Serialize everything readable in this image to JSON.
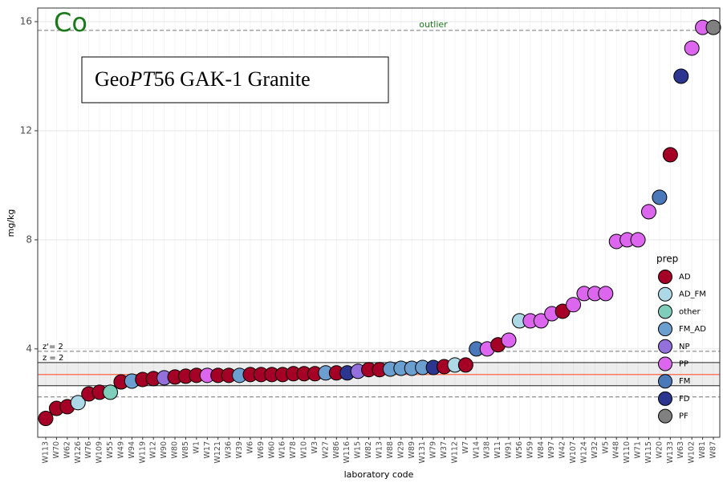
{
  "chart_data": {
    "type": "scatter",
    "element_label": "Co",
    "title_parts": [
      "Geo",
      "PT",
      "56 GAK-1 Granite"
    ],
    "x_label": "laboratory code",
    "y_label": "mg/kg",
    "categories": [
      "W113",
      "W70",
      "W62",
      "W126",
      "W76",
      "W109",
      "W55",
      "W49",
      "W94",
      "W119",
      "W12",
      "W90",
      "W80",
      "W85",
      "W1",
      "W17",
      "W121",
      "W36",
      "W39",
      "W6",
      "W69",
      "W60",
      "W16",
      "W78",
      "W10",
      "W3",
      "W27",
      "W86",
      "W116",
      "W15",
      "W82",
      "W13",
      "W88",
      "W29",
      "W89",
      "W131",
      "W79",
      "W37",
      "W112",
      "W7",
      "W14",
      "W38",
      "W11",
      "W91",
      "W56",
      "W59",
      "W84",
      "W97",
      "W42",
      "W107",
      "W124",
      "W32",
      "W5",
      "W48",
      "W110",
      "W71",
      "W115",
      "W20",
      "W133",
      "W63",
      "W102",
      "W81",
      "W87"
    ],
    "values": [
      1.45,
      1.82,
      1.88,
      2.03,
      2.35,
      2.41,
      2.41,
      2.79,
      2.82,
      2.88,
      2.91,
      2.94,
      2.97,
      3.0,
      3.03,
      3.03,
      3.03,
      3.03,
      3.03,
      3.06,
      3.06,
      3.06,
      3.06,
      3.09,
      3.09,
      3.09,
      3.12,
      3.12,
      3.12,
      3.18,
      3.24,
      3.24,
      3.26,
      3.29,
      3.29,
      3.32,
      3.32,
      3.35,
      3.41,
      3.41,
      4.0,
      4.0,
      4.15,
      4.32,
      5.03,
      5.03,
      5.03,
      5.29,
      5.38,
      5.62,
      6.03,
      6.03,
      6.03,
      7.94,
      8.0,
      8.0,
      9.03,
      9.56,
      11.12,
      14.0,
      15.03,
      15.79,
      15.79
    ],
    "groups": [
      "AD",
      "AD",
      "AD",
      "AD_FM",
      "AD",
      "AD",
      "other",
      "AD",
      "FM_AD",
      "AD",
      "AD",
      "NP",
      "AD",
      "AD",
      "AD",
      "PP",
      "AD",
      "AD",
      "FM_AD",
      "AD",
      "AD",
      "AD",
      "AD",
      "AD",
      "AD",
      "AD",
      "FM_AD",
      "AD",
      "FD",
      "NP",
      "AD",
      "AD",
      "FM_AD",
      "FM_AD",
      "FM_AD",
      "FM_AD",
      "FD",
      "AD",
      "AD_FM",
      "AD",
      "FM",
      "PP",
      "AD",
      "PP",
      "AD_FM",
      "PP",
      "PP",
      "PP",
      "AD",
      "PP",
      "PP",
      "PP",
      "PP",
      "PP",
      "PP",
      "PP",
      "PP",
      "FM",
      "AD",
      "FD",
      "PP",
      "PP",
      "PF"
    ],
    "legend": {
      "title": "prep",
      "items": [
        {
          "name": "AD",
          "color": "#a50026"
        },
        {
          "name": "AD_FM",
          "color": "#add8e6"
        },
        {
          "name": "other",
          "color": "#7fcdbb"
        },
        {
          "name": "FM_AD",
          "color": "#6a9fd0"
        },
        {
          "name": "NP",
          "color": "#9370db"
        },
        {
          "name": "PP",
          "color": "#dd66ee"
        },
        {
          "name": "FM",
          "color": "#4a78b8"
        },
        {
          "name": "FD",
          "color": "#2c3590"
        },
        {
          "name": "PF",
          "color": "#808080"
        }
      ]
    },
    "assigned_value": 3.06,
    "z_band": {
      "label": "z = 2",
      "values": [
        3.5,
        2.65
      ]
    },
    "z_prime_band": {
      "label": "z'= 2",
      "values": [
        3.91,
        2.24
      ]
    },
    "outlier": {
      "label": "outlier",
      "value": 15.68
    },
    "ylim": [
      0.76,
      16.5
    ],
    "yticks": [
      4,
      8,
      12,
      16
    ],
    "grid": true
  }
}
